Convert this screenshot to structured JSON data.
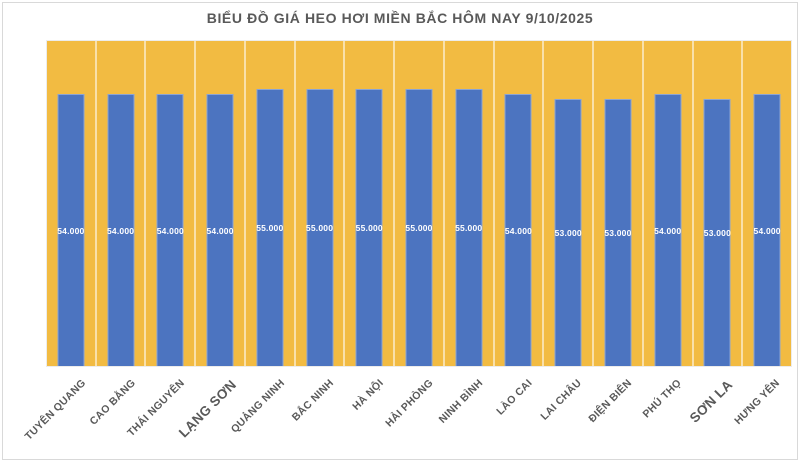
{
  "chart_data": {
    "type": "bar",
    "title": "BIỂU ĐỒ GIÁ HEO HƠI MIỀN BẮC HÔM NAY 9/10/2025",
    "categories": [
      "TUYÊN QUANG",
      "CAO BẰNG",
      "THÁI NGUYÊN",
      "LẠNG SƠN",
      "QUẢNG NINH",
      "BẮC NINH",
      "HÀ NỘI",
      "HẢI PHÒNG",
      "NINH BÌNH",
      "LÀO CAI",
      "LAI CHÂU",
      "ĐIỆN BIÊN",
      "PHÚ THỌ",
      "SƠN LA",
      "HƯNG YÊN"
    ],
    "values": [
      54000,
      54000,
      54000,
      54000,
      55000,
      55000,
      55000,
      55000,
      55000,
      54000,
      53000,
      53000,
      54000,
      53000,
      54000
    ],
    "value_labels": [
      "54.000",
      "54.000",
      "54.000",
      "54.000",
      "55.000",
      "55.000",
      "55.000",
      "55.000",
      "55.000",
      "54.000",
      "53.000",
      "53.000",
      "54.000",
      "53.000",
      "54.000"
    ],
    "emphasized_categories": [
      "LẠNG SƠN",
      "SƠN LA"
    ],
    "xlabel": "",
    "ylabel": "",
    "ylim": [
      0,
      64500
    ],
    "grid": "vertical-category-separators",
    "legend": "none",
    "colors": {
      "bar": "#4C74C0",
      "plot_background": "#F2BB42",
      "gridline": "rgba(255,255,255,0.55)",
      "title_text": "#595959",
      "axis_label_text": "#595959",
      "value_label_text": "#FFFFFF",
      "frame_border": "#D9D9D9"
    }
  }
}
